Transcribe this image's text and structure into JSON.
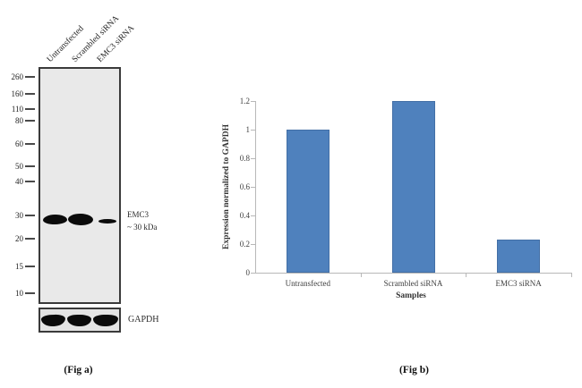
{
  "figure_a": {
    "caption": "(Fig a)",
    "lane_labels": [
      "Untransfected",
      "Scrambled siRNA",
      "EMC3 siRNA"
    ],
    "ladder_values": [
      260,
      160,
      110,
      80,
      60,
      50,
      40,
      30,
      20,
      15,
      10
    ],
    "band_annotation": [
      "EMC3",
      "~ 30 kDa"
    ],
    "loading_control_label": "GAPDH"
  },
  "figure_b": {
    "caption": "(Fig b)"
  },
  "chart_data": {
    "type": "bar",
    "categories": [
      "Untransfected",
      "Scrambled siRNA",
      "EMC3 siRNA"
    ],
    "values": [
      1.0,
      1.2,
      0.23
    ],
    "title": "",
    "xlabel": "Samples",
    "ylabel": "Expression normalized to GAPDH",
    "ylim": [
      0,
      1.2
    ],
    "yticks": [
      0,
      0.2,
      0.4,
      0.6,
      0.8,
      1,
      1.2
    ],
    "bar_color": "#4f81bd",
    "axis_color": "#b8b8b8",
    "grid": false,
    "legend": false
  }
}
